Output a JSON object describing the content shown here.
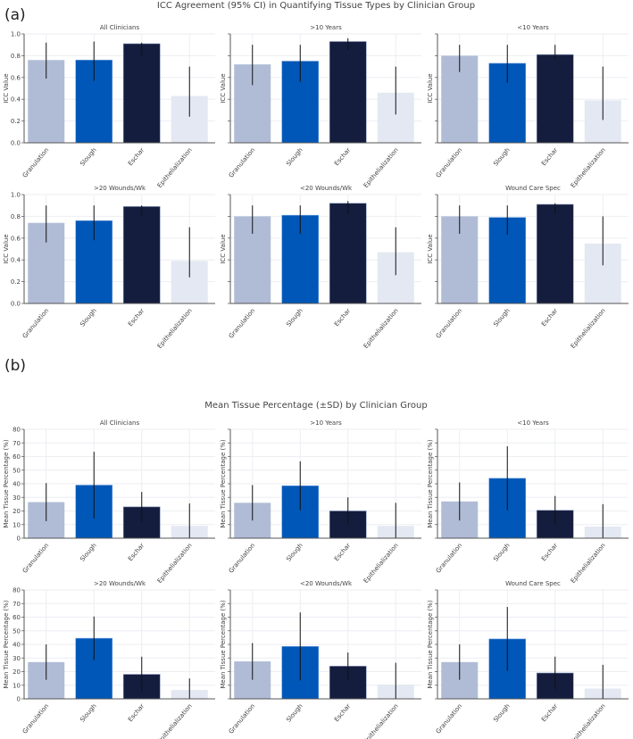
{
  "chart_data": [
    {
      "type": "bar",
      "panel_label": "(a)",
      "title": "ICC Agreement (95% CI) in Quantifying Tissue Types by Clinician Group",
      "ylabel": "ICC Value",
      "ylim": [
        0,
        1.0
      ],
      "yticks": [
        "0.0",
        "0.2",
        "0.4",
        "0.6",
        "0.8",
        "1.0"
      ],
      "categories": [
        "Granulation",
        "Slough",
        "Eschar",
        "Epithelialization"
      ],
      "colors": [
        "#b0bcd6",
        "#0057b7",
        "#141d3d",
        "#e3e8f2"
      ],
      "grid": true,
      "error_type": "ci",
      "panels": [
        {
          "title": "All Clinicians",
          "values": [
            0.76,
            0.76,
            0.91,
            0.43
          ],
          "lower": [
            0.59,
            0.57,
            0.8,
            0.24
          ],
          "upper": [
            0.92,
            0.93,
            0.92,
            0.7
          ]
        },
        {
          "title": ">10 Years",
          "values": [
            0.72,
            0.75,
            0.93,
            0.46
          ],
          "lower": [
            0.53,
            0.56,
            0.85,
            0.26
          ],
          "upper": [
            0.9,
            0.9,
            0.96,
            0.7
          ]
        },
        {
          "title": "<10 Years",
          "values": [
            0.8,
            0.73,
            0.81,
            0.39
          ],
          "lower": [
            0.65,
            0.55,
            0.77,
            0.21
          ],
          "upper": [
            0.9,
            0.9,
            0.9,
            0.7
          ]
        },
        {
          "title": ">20 Wounds/Wk",
          "values": [
            0.74,
            0.76,
            0.89,
            0.39
          ],
          "lower": [
            0.56,
            0.58,
            0.81,
            0.24
          ],
          "upper": [
            0.9,
            0.9,
            0.9,
            0.7
          ]
        },
        {
          "title": "<20 Wounds/Wk",
          "values": [
            0.8,
            0.81,
            0.92,
            0.47
          ],
          "lower": [
            0.64,
            0.64,
            0.82,
            0.26
          ],
          "upper": [
            0.9,
            0.9,
            0.94,
            0.7
          ]
        },
        {
          "title": "Wound Care Spec",
          "values": [
            0.8,
            0.79,
            0.91,
            0.55
          ],
          "lower": [
            0.64,
            0.63,
            0.82,
            0.35
          ],
          "upper": [
            0.9,
            0.9,
            0.92,
            0.8
          ]
        }
      ]
    },
    {
      "type": "bar",
      "panel_label": "(b)",
      "title": "Mean Tissue Percentage (±SD) by Clinician Group",
      "ylabel": "Mean Tissue Percentage (%)",
      "ylim": [
        0,
        80
      ],
      "yticks": [
        "0",
        "10",
        "20",
        "30",
        "40",
        "50",
        "60",
        "70",
        "80"
      ],
      "categories": [
        "Granulation",
        "Slough",
        "Eschar",
        "Epithelialization"
      ],
      "colors": [
        "#b0bcd6",
        "#0057b7",
        "#141d3d",
        "#e3e8f2"
      ],
      "grid": true,
      "error_type": "sd",
      "panels": [
        {
          "title": "All Clinicians",
          "values": [
            26.5,
            39,
            23,
            9
          ],
          "sd": [
            14,
            24.5,
            11,
            16.5
          ]
        },
        {
          "title": ">10 Years",
          "values": [
            26,
            38.5,
            20,
            9
          ],
          "sd": [
            13,
            18,
            10,
            17
          ]
        },
        {
          "title": "<10 Years",
          "values": [
            27,
            44,
            20.5,
            8.5
          ],
          "sd": [
            14,
            23.5,
            10.5,
            16.5
          ]
        },
        {
          "title": ">20 Wounds/Wk",
          "values": [
            27,
            44.5,
            18,
            6.5
          ],
          "sd": [
            13,
            16,
            13,
            8.5
          ]
        },
        {
          "title": "<20 Wounds/Wk",
          "values": [
            27.5,
            38.5,
            24,
            10.5
          ],
          "sd": [
            13.5,
            25,
            10,
            16
          ]
        },
        {
          "title": "Wound Care Spec",
          "values": [
            27,
            44,
            19,
            7.5
          ],
          "sd": [
            13,
            23.5,
            12,
            17.5
          ]
        }
      ]
    }
  ]
}
